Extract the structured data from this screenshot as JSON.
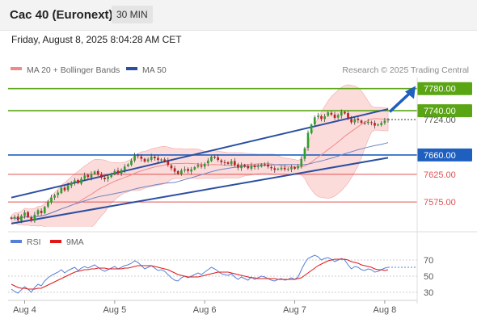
{
  "header": {
    "title": "Cac 40 (Euronext)",
    "timeframe": "30 MIN"
  },
  "datetime": "Friday, August 8, 2025 8:04:28 AM CET",
  "legend": {
    "ma20_label": "MA 20 + Bollinger Bands",
    "ma50_label": "MA 50",
    "copyright": "Research © 2025 Trading Central"
  },
  "colors": {
    "resistance": "#5aa514",
    "support": "#1e5fbf",
    "minor": "#e05050",
    "channel": "#2a4fa0",
    "candle_up": "#2e9e2e",
    "candle_down": "#c21e1e",
    "band_fill": "#fbd5d5",
    "ma20": "#f08a8a",
    "ma50": "#6c86c4",
    "rsi": "#5580d8",
    "rsi_ma": "#e01818",
    "arrow": "#1e5fbf"
  },
  "chart_data": [
    {
      "type": "candlestick",
      "title": "Cac 40 (Euronext)",
      "timeframe": "30 MIN",
      "x_ticks": [
        "Aug 4",
        "Aug 5",
        "Aug 6",
        "Aug 7",
        "Aug 8"
      ],
      "ylim": [
        7530,
        7800
      ],
      "levels": [
        {
          "value": 7780.0,
          "label": "7780.00",
          "kind": "resistance"
        },
        {
          "value": 7740.0,
          "label": "7740.00",
          "kind": "resistance"
        },
        {
          "value": 7724.0,
          "label": "7724.00",
          "kind": "last"
        },
        {
          "value": 7660.0,
          "label": "7660.00",
          "kind": "support"
        },
        {
          "value": 7625.0,
          "label": "7625.00",
          "kind": "minor"
        },
        {
          "value": 7575.0,
          "label": "7575.00",
          "kind": "minor"
        }
      ],
      "close": [
        7545,
        7548,
        7542,
        7550,
        7556,
        7548,
        7541,
        7552,
        7560,
        7555,
        7566,
        7575,
        7583,
        7587,
        7592,
        7601,
        7596,
        7605,
        7610,
        7614,
        7609,
        7617,
        7623,
        7620,
        7626,
        7630,
        7625,
        7619,
        7616,
        7621,
        7626,
        7631,
        7627,
        7633,
        7639,
        7643,
        7650,
        7659,
        7658,
        7653,
        7648,
        7652,
        7657,
        7654,
        7651,
        7652,
        7649,
        7642,
        7636,
        7630,
        7626,
        7632,
        7634,
        7631,
        7634,
        7638,
        7642,
        7639,
        7644,
        7650,
        7657,
        7655,
        7651,
        7647,
        7646,
        7644,
        7649,
        7642,
        7637,
        7642,
        7639,
        7636,
        7641,
        7638,
        7640,
        7643,
        7642,
        7639,
        7636,
        7633,
        7635,
        7637,
        7634,
        7635,
        7638,
        7635,
        7640,
        7653,
        7672,
        7700,
        7715,
        7728,
        7731,
        7725,
        7730,
        7737,
        7733,
        7727,
        7732,
        7738,
        7735,
        7726,
        7719,
        7725,
        7723,
        7718,
        7717,
        7720,
        7718,
        7713,
        7715,
        7718,
        7722,
        7724
      ],
      "rsi": {
        "ylim": [
          20,
          80
        ],
        "ticks": [
          70,
          50,
          30
        ],
        "series_labels": [
          "RSI",
          "9MA"
        ],
        "rsi_values": [
          34,
          31,
          29,
          33,
          37,
          34,
          30,
          36,
          40,
          38,
          44,
          48,
          51,
          53,
          55,
          58,
          54,
          57,
          59,
          61,
          57,
          60,
          62,
          60,
          62,
          64,
          61,
          58,
          56,
          58,
          60,
          62,
          59,
          61,
          63,
          64,
          66,
          69,
          67,
          63,
          59,
          61,
          63,
          60,
          57,
          58,
          56,
          52,
          48,
          45,
          44,
          48,
          50,
          48,
          50,
          52,
          54,
          52,
          55,
          58,
          61,
          59,
          56,
          53,
          52,
          51,
          53,
          49,
          46,
          49,
          47,
          45,
          49,
          46,
          48,
          50,
          49,
          47,
          45,
          44,
          46,
          47,
          45,
          46,
          48,
          46,
          49,
          58,
          66,
          72,
          74,
          76,
          74,
          70,
          72,
          73,
          71,
          68,
          70,
          72,
          70,
          64,
          59,
          62,
          61,
          58,
          57,
          59,
          58,
          55,
          56,
          58,
          60,
          61
        ],
        "ma_values": [
          40,
          38,
          36,
          35,
          35,
          34,
          34,
          34,
          35,
          35,
          37,
          39,
          41,
          43,
          45,
          47,
          49,
          51,
          53,
          55,
          56,
          57,
          58,
          58,
          59,
          59,
          60,
          60,
          60,
          59,
          59,
          59,
          59,
          59,
          60,
          60,
          61,
          62,
          63,
          63,
          63,
          63,
          63,
          62,
          61,
          60,
          59,
          58,
          56,
          54,
          52,
          51,
          50,
          49,
          49,
          49,
          49,
          50,
          51,
          52,
          53,
          54,
          55,
          55,
          55,
          55,
          54,
          53,
          52,
          51,
          50,
          49,
          48,
          48,
          47,
          47,
          47,
          47,
          47,
          47,
          46,
          46,
          46,
          46,
          46,
          46,
          47,
          48,
          51,
          54,
          57,
          60,
          63,
          65,
          67,
          69,
          70,
          71,
          71,
          71,
          71,
          70,
          68,
          67,
          66,
          64,
          63,
          62,
          61,
          59,
          58,
          58,
          57,
          58
        ]
      }
    }
  ]
}
